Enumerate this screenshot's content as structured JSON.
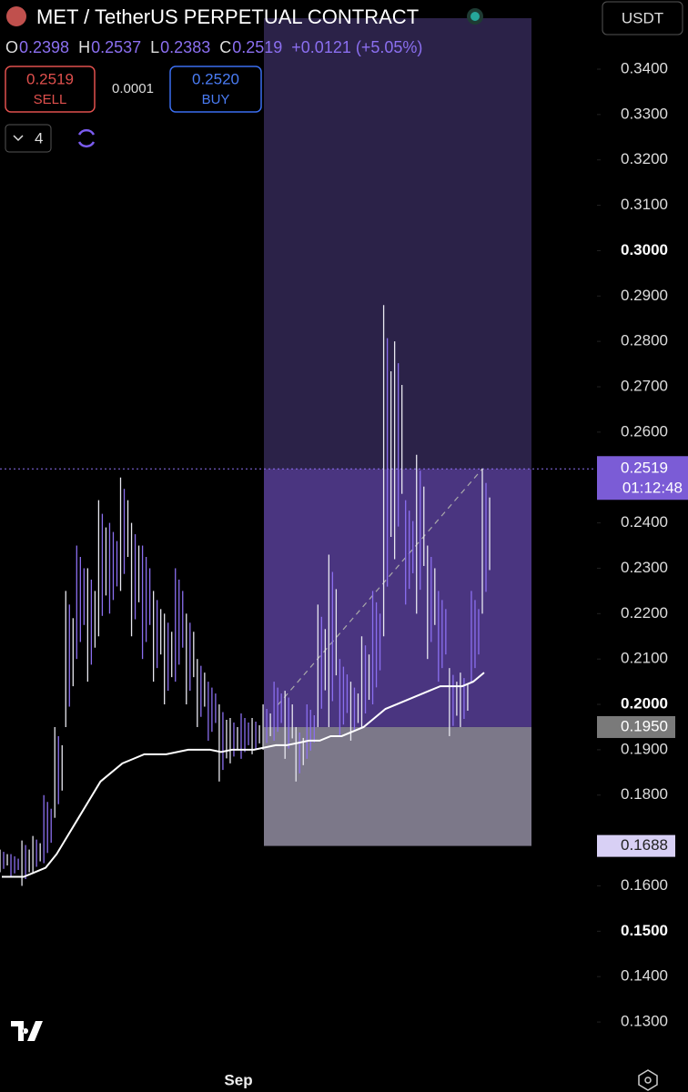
{
  "header": {
    "symbol": "MET / TetherUS PERPETUAL CONTRACT",
    "currency": "USDT",
    "ohlc": [
      {
        "key": "O",
        "value": "0.2398"
      },
      {
        "key": "H",
        "value": "0.2537"
      },
      {
        "key": "L",
        "value": "0.2383"
      },
      {
        "key": "C",
        "value": "0.2519"
      }
    ],
    "change": "+0.0121 (+5.05%)"
  },
  "trade": {
    "sell_price": "0.2519",
    "sell": "SELL",
    "spread": "0.0001",
    "buy_price": "0.2520",
    "buy": "BUY"
  },
  "indicators": "4",
  "chart": {
    "ylim": [
      0.11457,
      0.35524
    ],
    "yticks": [
      {
        "value": 0.34,
        "label": "0.3400"
      },
      {
        "value": 0.33,
        "label": "0.3300"
      },
      {
        "value": 0.32,
        "label": "0.3200"
      },
      {
        "value": 0.31,
        "label": "0.3100"
      },
      {
        "value": 0.3,
        "label": "0.3000",
        "bold": true
      },
      {
        "value": 0.29,
        "label": "0.2900"
      },
      {
        "value": 0.28,
        "label": "0.2800"
      },
      {
        "value": 0.27,
        "label": "0.2700"
      },
      {
        "value": 0.26,
        "label": "0.2600"
      },
      {
        "value": 0.24,
        "label": "0.2400"
      },
      {
        "value": 0.23,
        "label": "0.2300"
      },
      {
        "value": 0.22,
        "label": "0.2200"
      },
      {
        "value": 0.21,
        "label": "0.2100"
      },
      {
        "value": 0.2,
        "label": "0.2000",
        "bold": true
      },
      {
        "value": 0.19,
        "label": "0.1900"
      },
      {
        "value": 0.18,
        "label": "0.1800"
      },
      {
        "value": 0.16,
        "label": "0.1600"
      },
      {
        "value": 0.15,
        "label": "0.1500",
        "bold": true
      },
      {
        "value": 0.14,
        "label": "0.1400"
      },
      {
        "value": 0.13,
        "label": "0.1300"
      }
    ],
    "last_price": 0.2519,
    "countdown": "01:12:48",
    "entry": {
      "value": 0.195,
      "label": "0.1950"
    },
    "stop": 0.1688,
    "x_label": "Sep",
    "highs": [
      0.168,
      0.167,
      0.17,
      0.171,
      0.18,
      0.195,
      0.225,
      0.235,
      0.23,
      0.245,
      0.24,
      0.25,
      0.24,
      0.235,
      0.225,
      0.22,
      0.23,
      0.22,
      0.21,
      0.205,
      0.2,
      0.197,
      0.198,
      0.197,
      0.2,
      0.205,
      0.203,
      0.195,
      0.2,
      0.222,
      0.233,
      0.21,
      0.205,
      0.215,
      0.225,
      0.288,
      0.28,
      0.245,
      0.255,
      0.235,
      0.225,
      0.208,
      0.207,
      0.225,
      0.252
    ],
    "lows": [
      0.163,
      0.162,
      0.16,
      0.163,
      0.165,
      0.175,
      0.195,
      0.21,
      0.205,
      0.215,
      0.22,
      0.225,
      0.215,
      0.21,
      0.205,
      0.2,
      0.205,
      0.2,
      0.195,
      0.192,
      0.183,
      0.187,
      0.188,
      0.189,
      0.19,
      0.192,
      0.188,
      0.183,
      0.188,
      0.195,
      0.195,
      0.193,
      0.192,
      0.195,
      0.2,
      0.215,
      0.232,
      0.222,
      0.22,
      0.21,
      0.205,
      0.193,
      0.195,
      0.205,
      0.22
    ],
    "ma": [
      0.162,
      0.162,
      0.162,
      0.163,
      0.164,
      0.167,
      0.171,
      0.175,
      0.179,
      0.183,
      0.185,
      0.187,
      0.188,
      0.189,
      0.189,
      0.189,
      0.1895,
      0.19,
      0.19,
      0.19,
      0.1895,
      0.19,
      0.19,
      0.19,
      0.1905,
      0.191,
      0.191,
      0.1915,
      0.192,
      0.192,
      0.193,
      0.193,
      0.194,
      0.195,
      0.197,
      0.199,
      0.2,
      0.201,
      0.202,
      0.203,
      0.204,
      0.204,
      0.204,
      0.205,
      0.207
    ]
  }
}
